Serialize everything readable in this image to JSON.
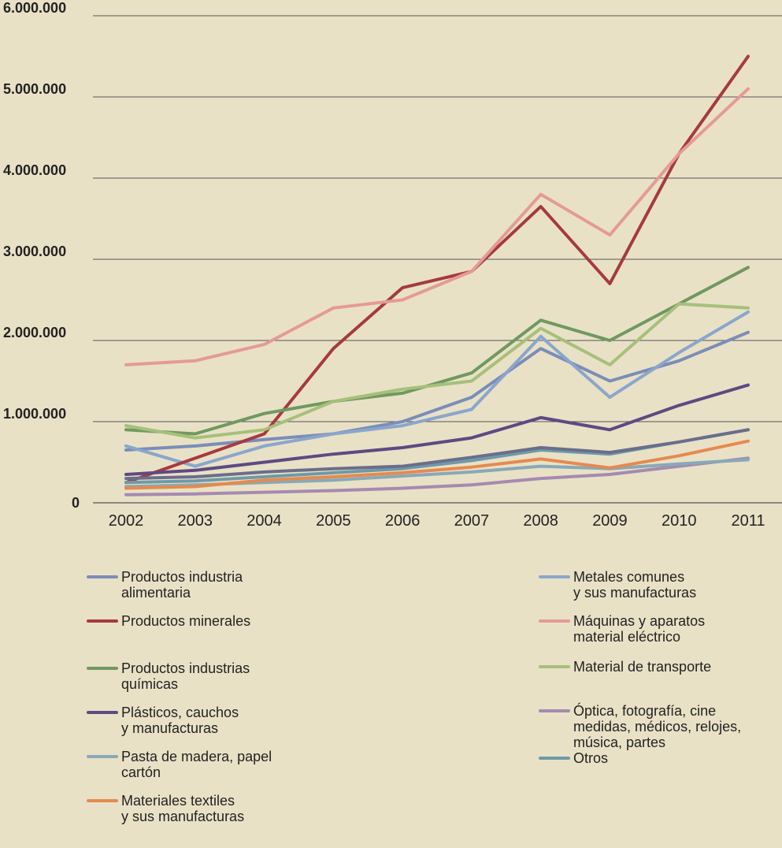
{
  "chart_data": {
    "type": "line",
    "title": "",
    "xlabel": "",
    "ylabel": "",
    "categories": [
      "2002",
      "2003",
      "2004",
      "2005",
      "2006",
      "2007",
      "2008",
      "2009",
      "2010",
      "2011"
    ],
    "ylim": [
      0,
      6000000
    ],
    "yticks": [
      0,
      1000000,
      2000000,
      3000000,
      4000000,
      5000000,
      6000000
    ],
    "ytick_labels": [
      "0",
      "1.000.000",
      "2.000.000",
      "3.000.000",
      "4.000.000",
      "5.000.000",
      "6.000.000"
    ],
    "grid": "horizontal",
    "legend_position": "bottom",
    "series": [
      {
        "name": "Productos industria alimentaria",
        "color": "#7b8db8",
        "values": [
          650000,
          700000,
          780000,
          850000,
          1000000,
          1300000,
          1900000,
          1500000,
          1750000,
          2100000
        ]
      },
      {
        "name": "Metales comunes y sus manufacturas",
        "color": "#8aa6cc",
        "values": [
          700000,
          450000,
          700000,
          850000,
          950000,
          1150000,
          2050000,
          1300000,
          1850000,
          2350000
        ]
      },
      {
        "name": "Productos minerales",
        "color": "#a63a3e",
        "values": [
          250000,
          550000,
          850000,
          1900000,
          2650000,
          2850000,
          3650000,
          2700000,
          4300000,
          5500000
        ]
      },
      {
        "name": "Máquinas y aparatos material eléctrico",
        "color": "#e49a98",
        "values": [
          1700000,
          1750000,
          1950000,
          2400000,
          2500000,
          2850000,
          3800000,
          3300000,
          4300000,
          5100000
        ]
      },
      {
        "name": "Productos industrias químicas",
        "color": "#6f9960",
        "values": [
          900000,
          850000,
          1100000,
          1250000,
          1350000,
          1600000,
          2250000,
          2000000,
          2450000,
          2900000
        ]
      },
      {
        "name": "Material de transporte",
        "color": "#a6c07a",
        "values": [
          950000,
          800000,
          900000,
          1250000,
          1400000,
          1500000,
          2150000,
          1700000,
          2450000,
          2400000
        ]
      },
      {
        "name": "Plásticos, cauchos y manufacturas",
        "color": "#5e4a82",
        "values": [
          350000,
          400000,
          500000,
          600000,
          680000,
          800000,
          1050000,
          900000,
          1200000,
          1450000
        ]
      },
      {
        "name": "Óptica, fotografía, cine medidas, médicos, relojes, música, partes",
        "color": "#a58ab0",
        "values": [
          100000,
          110000,
          130000,
          150000,
          180000,
          220000,
          300000,
          350000,
          450000,
          550000
        ]
      },
      {
        "name": "Pasta de madera, papel cartón",
        "color": "#88a9b8",
        "values": [
          200000,
          220000,
          250000,
          280000,
          330000,
          380000,
          450000,
          420000,
          480000,
          530000
        ]
      },
      {
        "name": "Otros",
        "color": "#6e9aa8",
        "values": [
          250000,
          270000,
          320000,
          370000,
          420000,
          520000,
          650000,
          600000,
          750000,
          900000
        ]
      },
      {
        "name": "Materiales textiles y sus manufacturas",
        "color": "#e58a4f",
        "values": [
          180000,
          200000,
          280000,
          320000,
          370000,
          440000,
          540000,
          430000,
          580000,
          760000
        ]
      },
      {
        "name": "",
        "color": "#6a6e8a",
        "values": [
          300000,
          320000,
          380000,
          420000,
          450000,
          560000,
          680000,
          620000,
          750000,
          900000
        ]
      }
    ]
  },
  "legend": {
    "left": [
      {
        "lines": [
          "Productos industria",
          "alimentaria"
        ],
        "color": "#7b8db8"
      },
      {
        "lines": [
          "Productos minerales"
        ],
        "color": "#a63a3e"
      },
      {
        "lines": [
          "Productos industrias",
          "químicas"
        ],
        "color": "#6f9960"
      },
      {
        "lines": [
          "Plásticos, cauchos",
          "y manufacturas"
        ],
        "color": "#5e4a82"
      },
      {
        "lines": [
          "Pasta de madera, papel",
          "cartón"
        ],
        "color": "#88a9b8"
      },
      {
        "lines": [
          "Materiales textiles",
          "y sus manufacturas"
        ],
        "color": "#e58a4f"
      }
    ],
    "right": [
      {
        "lines": [
          "Metales comunes",
          "y sus manufacturas"
        ],
        "color": "#8aa6cc"
      },
      {
        "lines": [
          "Máquinas y aparatos",
          "material eléctrico"
        ],
        "color": "#e49a98"
      },
      {
        "lines": [
          "Material de transporte"
        ],
        "color": "#a6c07a"
      },
      {
        "lines": [
          "Óptica, fotografía, cine",
          "medidas, médicos, relojes,",
          "música, partes"
        ],
        "color": "#a58ab0"
      },
      {
        "lines": [
          "Otros"
        ],
        "color": "#6e9aa8"
      }
    ]
  }
}
